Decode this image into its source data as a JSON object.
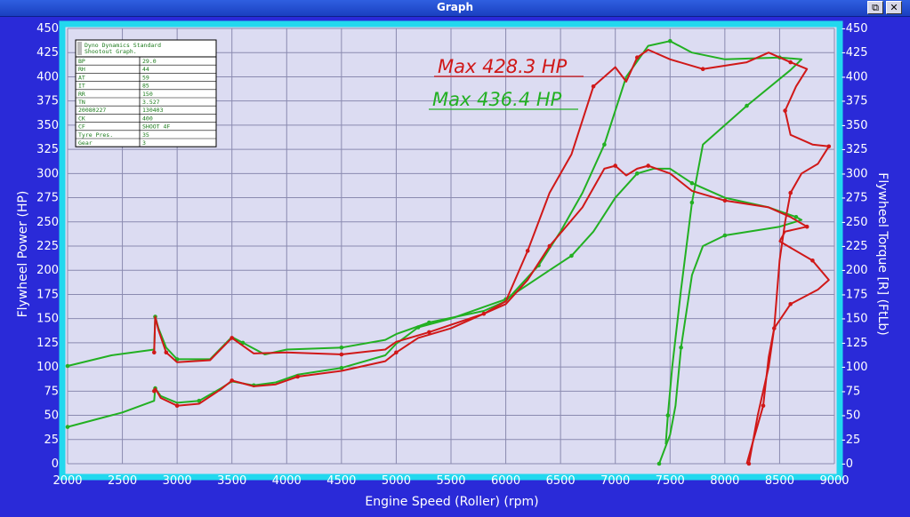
{
  "window": {
    "title": "Graph",
    "restore_glyph": "⧉",
    "close_glyph": "✕"
  },
  "colors": {
    "run1": "#d01818",
    "run2": "#22b022",
    "plot_bg": "#dcdcf2",
    "frame": "#22d8ee",
    "grid": "#8a8ab0"
  },
  "info_table": {
    "title_line1": "Dyno Dynamics Standard",
    "title_line2": "Shootout Graph.",
    "rows": [
      {
        "key": "BP",
        "value": "29.0"
      },
      {
        "key": "RH",
        "value": "44"
      },
      {
        "key": "AT",
        "value": "59"
      },
      {
        "key": "IT",
        "value": "85"
      },
      {
        "key": "RR",
        "value": "150"
      },
      {
        "key": "TN",
        "value": "3.527"
      },
      {
        "key": "20080227",
        "value": "130403"
      },
      {
        "key": "CK",
        "value": "400"
      },
      {
        "key": "CF",
        "value": "SHOOT 4F"
      },
      {
        "key": "Tyre Pres.",
        "value": "35"
      },
      {
        "key": "Gear",
        "value": "3"
      }
    ]
  },
  "chart_data": {
    "type": "line",
    "xlabel": "Engine Speed (Roller) (rpm)",
    "ylabel": "Flywheel Power (HP)",
    "y2label": "Flywheel Torque [R] (FtLb)",
    "xlim": [
      2000,
      9000
    ],
    "ylim": [
      0,
      450
    ],
    "y2lim": [
      0,
      450
    ],
    "x_ticks": [
      2000,
      2500,
      3000,
      3500,
      4000,
      4500,
      5000,
      5500,
      6000,
      6500,
      7000,
      7500,
      8000,
      8500,
      9000
    ],
    "y_ticks": [
      0,
      25,
      50,
      75,
      100,
      125,
      150,
      175,
      200,
      225,
      250,
      275,
      300,
      325,
      350,
      375,
      400,
      425,
      450
    ],
    "y2_ticks": [
      0,
      25,
      50,
      75,
      100,
      125,
      150,
      175,
      200,
      225,
      250,
      275,
      300,
      325,
      350,
      375,
      400,
      425,
      450
    ],
    "grid": true,
    "annotations": [
      {
        "text": "Max 428.3 HP",
        "color": "#d01818"
      },
      {
        "text": "Max 436.4 HP",
        "color": "#22b022"
      }
    ],
    "series": [
      {
        "color": "#22b022",
        "power": [
          [
            2000,
            38
          ],
          [
            2500,
            53
          ],
          [
            2790,
            65
          ],
          [
            2800,
            78
          ],
          [
            2850,
            70
          ],
          [
            3000,
            63
          ],
          [
            3200,
            65
          ],
          [
            3400,
            78
          ],
          [
            3500,
            85
          ],
          [
            3700,
            81
          ],
          [
            3900,
            84
          ],
          [
            4100,
            92
          ],
          [
            4500,
            99
          ],
          [
            4900,
            112
          ],
          [
            5000,
            124
          ],
          [
            5200,
            141
          ],
          [
            5500,
            150
          ],
          [
            5800,
            162
          ],
          [
            6000,
            170
          ],
          [
            6200,
            185
          ],
          [
            6400,
            200
          ],
          [
            6600,
            215
          ],
          [
            6800,
            240
          ],
          [
            7000,
            275
          ],
          [
            7200,
            300
          ],
          [
            7350,
            305
          ],
          [
            7500,
            305
          ],
          [
            7700,
            290
          ],
          [
            8000,
            275
          ],
          [
            8400,
            265
          ],
          [
            8650,
            255
          ],
          [
            8700,
            252
          ],
          [
            8500,
            245
          ],
          [
            8000,
            236
          ],
          [
            7800,
            225
          ],
          [
            7700,
            195
          ],
          [
            7600,
            120
          ],
          [
            7550,
            60
          ],
          [
            7500,
            30
          ],
          [
            7400,
            0
          ]
        ],
        "torque": [
          [
            2000,
            101
          ],
          [
            2400,
            112
          ],
          [
            2790,
            118
          ],
          [
            2800,
            152
          ],
          [
            2830,
            140
          ],
          [
            2900,
            120
          ],
          [
            3000,
            108
          ],
          [
            3300,
            108
          ],
          [
            3500,
            131
          ],
          [
            3600,
            125
          ],
          [
            3800,
            113
          ],
          [
            4000,
            118
          ],
          [
            4500,
            120
          ],
          [
            4900,
            128
          ],
          [
            5000,
            134
          ],
          [
            5300,
            146
          ],
          [
            5800,
            158
          ],
          [
            6000,
            168
          ],
          [
            6300,
            205
          ],
          [
            6500,
            240
          ],
          [
            6700,
            280
          ],
          [
            6900,
            330
          ],
          [
            7100,
            400
          ],
          [
            7300,
            432
          ],
          [
            7500,
            437
          ],
          [
            7700,
            425
          ],
          [
            8000,
            418
          ],
          [
            8500,
            420
          ],
          [
            8700,
            418
          ],
          [
            8600,
            407
          ],
          [
            8200,
            370
          ],
          [
            8000,
            350
          ],
          [
            7800,
            330
          ],
          [
            7700,
            270
          ],
          [
            7600,
            180
          ],
          [
            7520,
            100
          ],
          [
            7480,
            50
          ],
          [
            7460,
            20
          ]
        ]
      },
      {
        "color": "#d01818",
        "power": [
          [
            2790,
            75
          ],
          [
            2800,
            78
          ],
          [
            2850,
            68
          ],
          [
            3000,
            60
          ],
          [
            3200,
            62
          ],
          [
            3400,
            77
          ],
          [
            3500,
            86
          ],
          [
            3700,
            80
          ],
          [
            3900,
            82
          ],
          [
            4100,
            90
          ],
          [
            4500,
            96
          ],
          [
            4900,
            106
          ],
          [
            5000,
            115
          ],
          [
            5200,
            130
          ],
          [
            5500,
            140
          ],
          [
            5800,
            155
          ],
          [
            6000,
            165
          ],
          [
            6200,
            190
          ],
          [
            6400,
            225
          ],
          [
            6700,
            265
          ],
          [
            6900,
            305
          ],
          [
            7000,
            308
          ],
          [
            7100,
            298
          ],
          [
            7200,
            305
          ],
          [
            7300,
            308
          ],
          [
            7500,
            300
          ],
          [
            7700,
            282
          ],
          [
            8000,
            272
          ],
          [
            8400,
            265
          ],
          [
            8600,
            255
          ],
          [
            8750,
            245
          ],
          [
            8550,
            240
          ],
          [
            8500,
            230
          ],
          [
            8800,
            210
          ],
          [
            8950,
            190
          ],
          [
            8850,
            180
          ],
          [
            8600,
            165
          ],
          [
            8450,
            140
          ],
          [
            8400,
            110
          ],
          [
            8350,
            60
          ],
          [
            8250,
            20
          ],
          [
            8200,
            0
          ]
        ],
        "torque": [
          [
            2790,
            115
          ],
          [
            2800,
            152
          ],
          [
            2830,
            138
          ],
          [
            2900,
            115
          ],
          [
            3000,
            105
          ],
          [
            3300,
            107
          ],
          [
            3500,
            130
          ],
          [
            3700,
            114
          ],
          [
            4000,
            115
          ],
          [
            4500,
            113
          ],
          [
            4900,
            118
          ],
          [
            5000,
            126
          ],
          [
            5300,
            136
          ],
          [
            5800,
            155
          ],
          [
            6000,
            168
          ],
          [
            6200,
            220
          ],
          [
            6400,
            280
          ],
          [
            6600,
            320
          ],
          [
            6800,
            390
          ],
          [
            7000,
            410
          ],
          [
            7100,
            395
          ],
          [
            7200,
            420
          ],
          [
            7300,
            428
          ],
          [
            7500,
            418
          ],
          [
            7800,
            408
          ],
          [
            8200,
            415
          ],
          [
            8400,
            425
          ],
          [
            8600,
            415
          ],
          [
            8750,
            408
          ],
          [
            8650,
            390
          ],
          [
            8550,
            365
          ],
          [
            8600,
            340
          ],
          [
            8800,
            330
          ],
          [
            8950,
            328
          ],
          [
            8850,
            310
          ],
          [
            8700,
            300
          ],
          [
            8600,
            280
          ],
          [
            8550,
            250
          ],
          [
            8500,
            210
          ],
          [
            8450,
            140
          ],
          [
            8400,
            100
          ],
          [
            8300,
            50
          ],
          [
            8220,
            0
          ]
        ]
      }
    ]
  }
}
